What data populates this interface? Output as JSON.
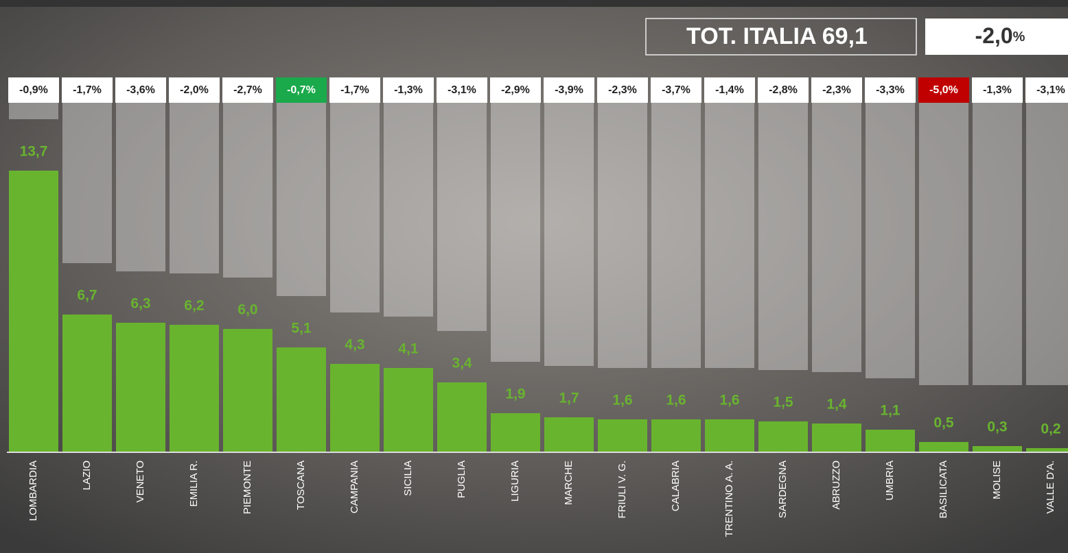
{
  "chart_data": {
    "type": "bar",
    "total": {
      "label": "TOT. ITALIA",
      "value": 69.1,
      "value_label": "69,1"
    },
    "total_change": {
      "value": -2.0,
      "value_label": "-2,0",
      "unit": "%"
    },
    "categories": [
      "LOMBARDIA",
      "LAZIO",
      "VENETO",
      "EMILIA R.",
      "PIEMONTE",
      "TOSCANA",
      "CAMPANIA",
      "SICILIA",
      "PUGLIA",
      "LIGURIA",
      "MARCHE",
      "FRIULI V. G.",
      "CALABRIA",
      "TRENTINO A. A.",
      "SARDEGNA",
      "ABRUZZO",
      "UMBRIA",
      "BASILICATA",
      "MOLISE",
      "VALLE D'A."
    ],
    "values": [
      13.7,
      6.7,
      6.3,
      6.2,
      6.0,
      5.1,
      4.3,
      4.1,
      3.4,
      1.9,
      1.7,
      1.6,
      1.6,
      1.6,
      1.5,
      1.4,
      1.1,
      0.5,
      0.3,
      0.2
    ],
    "value_labels": [
      "13,7",
      "6,7",
      "6,3",
      "6,2",
      "6,0",
      "5,1",
      "4,3",
      "4,1",
      "3,4",
      "1,9",
      "1,7",
      "1,6",
      "1,6",
      "1,6",
      "1,5",
      "1,4",
      "1,1",
      "0,5",
      "0,3",
      "0,2"
    ],
    "color": "#69b42e",
    "changes": {
      "values": [
        -0.9,
        -1.7,
        -3.6,
        -2.0,
        -2.7,
        -0.7,
        -1.7,
        -1.3,
        -3.1,
        -2.9,
        -3.9,
        -2.3,
        -3.7,
        -1.4,
        -2.8,
        -2.3,
        -3.3,
        -5.0,
        -1.3,
        -3.1
      ],
      "value_labels": [
        "-0,9%",
        "-1,7%",
        "-3,6%",
        "-2,0%",
        "-2,7%",
        "-0,7%",
        "-1,7%",
        "-1,3%",
        "-3,1%",
        "-2,9%",
        "-3,9%",
        "-2,3%",
        "-3,7%",
        "-1,4%",
        "-2,8%",
        "-2,3%",
        "-3,3%",
        "-5,0%",
        "-1,3%",
        "-3,1%"
      ],
      "highlights": [
        {
          "index": 5,
          "color": "#1aa94b"
        },
        {
          "index": 17,
          "color": "#c00000"
        }
      ]
    },
    "ylim": [
      0,
      22
    ]
  }
}
